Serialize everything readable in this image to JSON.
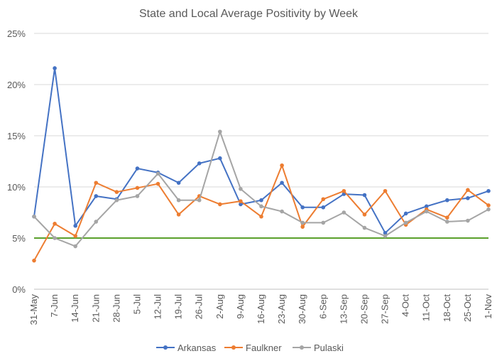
{
  "chart_data": {
    "type": "line",
    "title": "State and Local Average Positivity by Week",
    "xlabel": "",
    "ylabel": "",
    "categories": [
      "31-May",
      "7-Jun",
      "14-Jun",
      "21-Jun",
      "28-Jun",
      "5-Jul",
      "12-Jul",
      "19-Jul",
      "26-Jul",
      "2-Aug",
      "9-Aug",
      "16-Aug",
      "23-Aug",
      "30-Aug",
      "6-Sep",
      "13-Sep",
      "20-Sep",
      "27-Sep",
      "4-Oct",
      "11-Oct",
      "18-Oct",
      "25-Oct",
      "1-Nov"
    ],
    "ylim": [
      0,
      0.25
    ],
    "yticks": [
      {
        "value": 0,
        "label": "0%"
      },
      {
        "value": 0.05,
        "label": "5%"
      },
      {
        "value": 0.1,
        "label": "10%"
      },
      {
        "value": 0.15,
        "label": "15%"
      },
      {
        "value": 0.2,
        "label": "20%"
      },
      {
        "value": 0.25,
        "label": "25%"
      }
    ],
    "grid": true,
    "legend_position": "bottom",
    "reference_line": {
      "value": 0.05,
      "color": "#5aa02c"
    },
    "series": [
      {
        "name": "Arkansas",
        "color": "#4472c4",
        "values": [
          0.071,
          0.216,
          0.062,
          0.091,
          0.088,
          0.118,
          0.114,
          0.104,
          0.123,
          0.128,
          0.083,
          0.087,
          0.104,
          0.08,
          0.08,
          0.093,
          0.092,
          0.055,
          0.074,
          0.081,
          0.087,
          0.089,
          0.096
        ]
      },
      {
        "name": "Faulkner",
        "color": "#ed7d31",
        "values": [
          0.028,
          0.064,
          0.052,
          0.104,
          0.095,
          0.099,
          0.103,
          0.073,
          0.091,
          0.083,
          0.086,
          0.071,
          0.121,
          0.061,
          0.088,
          0.096,
          0.073,
          0.096,
          0.063,
          0.078,
          0.07,
          0.097,
          0.082
        ]
      },
      {
        "name": "Pulaski",
        "color": "#a5a5a5",
        "values": [
          0.071,
          0.05,
          0.042,
          0.066,
          0.087,
          0.091,
          0.113,
          0.087,
          0.087,
          0.154,
          0.098,
          0.081,
          0.076,
          0.065,
          0.065,
          0.075,
          0.06,
          0.052,
          0.065,
          0.076,
          0.066,
          0.067,
          0.078
        ]
      }
    ]
  }
}
